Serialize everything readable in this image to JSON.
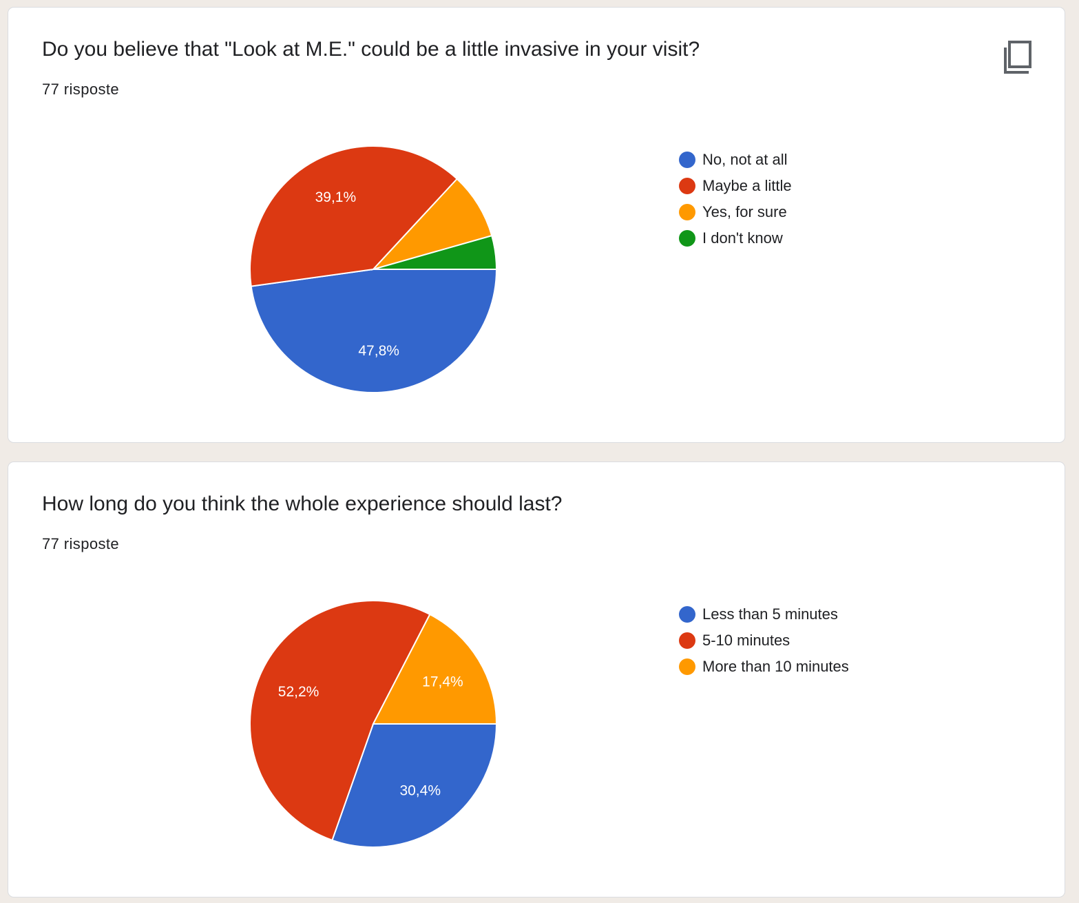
{
  "colors": {
    "blue": "#3366cc",
    "red": "#dc3912",
    "orange": "#ff9900",
    "green": "#109618"
  },
  "cards": [
    {
      "question": "Do you believe that \"Look at M.E.\" could be a little invasive in your visit?",
      "responses": "77 risposte",
      "copy_icon": "copy-icon"
    },
    {
      "question": "How long do you think the whole experience should last?",
      "responses": "77 risposte"
    }
  ],
  "chart_data": [
    {
      "type": "pie",
      "title": "",
      "slices": [
        {
          "label": "No, not at all",
          "value": 47.8,
          "color": "#3366cc",
          "display": "47,8%"
        },
        {
          "label": "Maybe a little",
          "value": 39.1,
          "color": "#dc3912",
          "display": "39,1%"
        },
        {
          "label": "Yes, for sure",
          "value": 8.7,
          "color": "#ff9900",
          "display": ""
        },
        {
          "label": "I don't know",
          "value": 4.4,
          "color": "#109618",
          "display": ""
        }
      ],
      "legend_position": "right"
    },
    {
      "type": "pie",
      "title": "",
      "slices": [
        {
          "label": "Less than 5 minutes",
          "value": 30.4,
          "color": "#3366cc",
          "display": "30,4%"
        },
        {
          "label": "5-10 minutes",
          "value": 52.2,
          "color": "#dc3912",
          "display": "52,2%"
        },
        {
          "label": "More than 10 minutes",
          "value": 17.4,
          "color": "#ff9900",
          "display": "17,4%"
        }
      ],
      "legend_position": "right"
    }
  ]
}
